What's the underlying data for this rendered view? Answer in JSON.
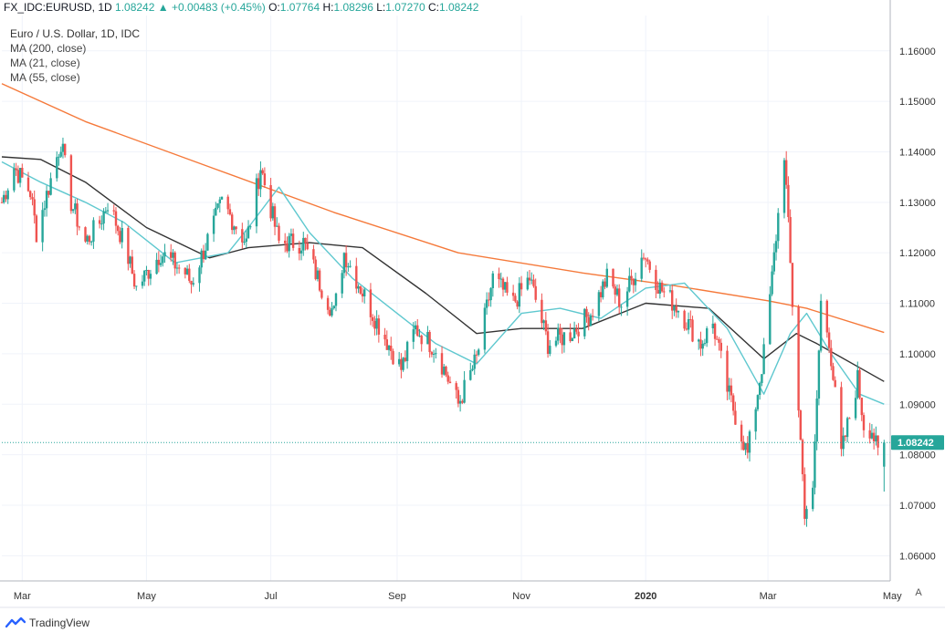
{
  "header": {
    "symbol": "FX_IDC:EURUSD, 1D",
    "last": "1.08242",
    "change": "+0.00483 (+0.45%)",
    "o_label": "O:",
    "o": "1.07764",
    "h_label": "H:",
    "h": "1.08296",
    "l_label": "L:",
    "l": "1.07270",
    "c_label": "C:",
    "c": "1.08242"
  },
  "legend": {
    "title": "Euro / U.S. Dollar, 1D, IDC",
    "ma200": "MA (200, close)",
    "ma21": "MA (21, close)",
    "ma55": "MA (55, close)"
  },
  "price_tag": "1.08242",
  "brand": "TradingView",
  "auto_label": "A",
  "colors": {
    "up": "#26a69a",
    "down": "#ef5350",
    "ma200": "#f5793a",
    "ma55": "#333333",
    "ma21": "#5fc8cf",
    "grid": "#f0f3fa",
    "axis_text": "#555555"
  },
  "chart_data": {
    "type": "candlestick",
    "ylim": [
      1.055,
      1.167
    ],
    "x_range": [
      "2019-02-19",
      "2020-04-30"
    ],
    "y_ticks": [
      "1.16000",
      "1.15000",
      "1.14000",
      "1.13000",
      "1.12000",
      "1.11000",
      "1.10000",
      "1.09000",
      "1.08000",
      "1.07000",
      "1.06000"
    ],
    "x_ticks": [
      {
        "label": "Mar",
        "date": "2019-03-01"
      },
      {
        "label": "May",
        "date": "2019-05-01"
      },
      {
        "label": "Jul",
        "date": "2019-07-01"
      },
      {
        "label": "Sep",
        "date": "2019-09-01"
      },
      {
        "label": "Nov",
        "date": "2019-11-01"
      },
      {
        "label": "2020",
        "date": "2020-01-01"
      },
      {
        "label": "Mar",
        "date": "2020-03-01"
      },
      {
        "label": "May",
        "date": "2020-05-01"
      }
    ],
    "close_path": [
      [
        "2019-02-19",
        1.13
      ],
      [
        "2019-02-25",
        1.137
      ],
      [
        "2019-03-05",
        1.132
      ],
      [
        "2019-03-08",
        1.124
      ],
      [
        "2019-03-20",
        1.142
      ],
      [
        "2019-03-25",
        1.13
      ],
      [
        "2019-04-01",
        1.122
      ],
      [
        "2019-04-08",
        1.126
      ],
      [
        "2019-04-12",
        1.13
      ],
      [
        "2019-04-20",
        1.122
      ],
      [
        "2019-04-26",
        1.113
      ],
      [
        "2019-05-08",
        1.12
      ],
      [
        "2019-05-20",
        1.116
      ],
      [
        "2019-05-23",
        1.114
      ],
      [
        "2019-06-07",
        1.13
      ],
      [
        "2019-06-19",
        1.122
      ],
      [
        "2019-06-26",
        1.137
      ],
      [
        "2019-07-05",
        1.122
      ],
      [
        "2019-07-17",
        1.122
      ],
      [
        "2019-07-25",
        1.114
      ],
      [
        "2019-08-01",
        1.108
      ],
      [
        "2019-08-06",
        1.12
      ],
      [
        "2019-08-20",
        1.108
      ],
      [
        "2019-09-03",
        1.097
      ],
      [
        "2019-09-10",
        1.105
      ],
      [
        "2019-09-20",
        1.101
      ],
      [
        "2019-10-01",
        1.09
      ],
      [
        "2019-10-10",
        1.099
      ],
      [
        "2019-10-18",
        1.115
      ],
      [
        "2019-10-28",
        1.11
      ],
      [
        "2019-11-05",
        1.115
      ],
      [
        "2019-11-14",
        1.102
      ],
      [
        "2019-11-25",
        1.104
      ],
      [
        "2019-12-05",
        1.108
      ],
      [
        "2019-12-13",
        1.115
      ],
      [
        "2019-12-20",
        1.11
      ],
      [
        "2019-12-31",
        1.12
      ],
      [
        "2020-01-08",
        1.113
      ],
      [
        "2020-01-17",
        1.109
      ],
      [
        "2020-01-28",
        1.102
      ],
      [
        "2020-02-03",
        1.106
      ],
      [
        "2020-02-10",
        1.093
      ],
      [
        "2020-02-20",
        1.08
      ],
      [
        "2020-02-28",
        1.1
      ],
      [
        "2020-03-03",
        1.115
      ],
      [
        "2020-03-09",
        1.14
      ],
      [
        "2020-03-13",
        1.11
      ],
      [
        "2020-03-19",
        1.069
      ],
      [
        "2020-03-23",
        1.072
      ],
      [
        "2020-03-27",
        1.11
      ],
      [
        "2020-03-31",
        1.103
      ],
      [
        "2020-04-06",
        1.08
      ],
      [
        "2020-04-14",
        1.095
      ],
      [
        "2020-04-17",
        1.086
      ],
      [
        "2020-04-21",
        1.085
      ],
      [
        "2020-04-24",
        1.08
      ],
      [
        "2020-04-27",
        1.0824
      ]
    ],
    "ma200": [
      [
        "2019-02-19",
        1.1535
      ],
      [
        "2019-04-01",
        1.146
      ],
      [
        "2019-06-01",
        1.137
      ],
      [
        "2019-08-01",
        1.128
      ],
      [
        "2019-10-01",
        1.12
      ],
      [
        "2019-12-01",
        1.116
      ],
      [
        "2020-01-15",
        1.1135
      ],
      [
        "2020-03-01",
        1.1105
      ],
      [
        "2020-03-20",
        1.109
      ],
      [
        "2020-04-27",
        1.1042
      ]
    ],
    "ma55": [
      [
        "2019-02-19",
        1.139
      ],
      [
        "2019-03-10",
        1.1385
      ],
      [
        "2019-04-01",
        1.134
      ],
      [
        "2019-05-01",
        1.125
      ],
      [
        "2019-06-01",
        1.119
      ],
      [
        "2019-06-20",
        1.121
      ],
      [
        "2019-07-20",
        1.122
      ],
      [
        "2019-08-15",
        1.121
      ],
      [
        "2019-09-15",
        1.112
      ],
      [
        "2019-10-10",
        1.104
      ],
      [
        "2019-11-01",
        1.105
      ],
      [
        "2019-12-01",
        1.105
      ],
      [
        "2020-01-01",
        1.11
      ],
      [
        "2020-02-01",
        1.109
      ],
      [
        "2020-02-28",
        1.099
      ],
      [
        "2020-03-15",
        1.104
      ],
      [
        "2020-03-25",
        1.102
      ],
      [
        "2020-04-27",
        1.0945
      ]
    ],
    "ma21": [
      [
        "2019-02-19",
        1.138
      ],
      [
        "2019-03-10",
        1.134
      ],
      [
        "2019-04-01",
        1.13
      ],
      [
        "2019-04-20",
        1.126
      ],
      [
        "2019-05-15",
        1.118
      ],
      [
        "2019-06-10",
        1.12
      ],
      [
        "2019-06-20",
        1.125
      ],
      [
        "2019-07-05",
        1.133
      ],
      [
        "2019-07-20",
        1.124
      ],
      [
        "2019-08-10",
        1.115
      ],
      [
        "2019-09-01",
        1.108
      ],
      [
        "2019-09-20",
        1.102
      ],
      [
        "2019-10-10",
        1.098
      ],
      [
        "2019-11-01",
        1.108
      ],
      [
        "2019-11-20",
        1.109
      ],
      [
        "2019-12-10",
        1.107
      ],
      [
        "2020-01-01",
        1.113
      ],
      [
        "2020-01-20",
        1.114
      ],
      [
        "2020-02-10",
        1.105
      ],
      [
        "2020-02-28",
        1.092
      ],
      [
        "2020-03-12",
        1.104
      ],
      [
        "2020-03-20",
        1.108
      ],
      [
        "2020-04-01",
        1.1
      ],
      [
        "2020-04-15",
        1.092
      ],
      [
        "2020-04-27",
        1.09
      ]
    ]
  }
}
